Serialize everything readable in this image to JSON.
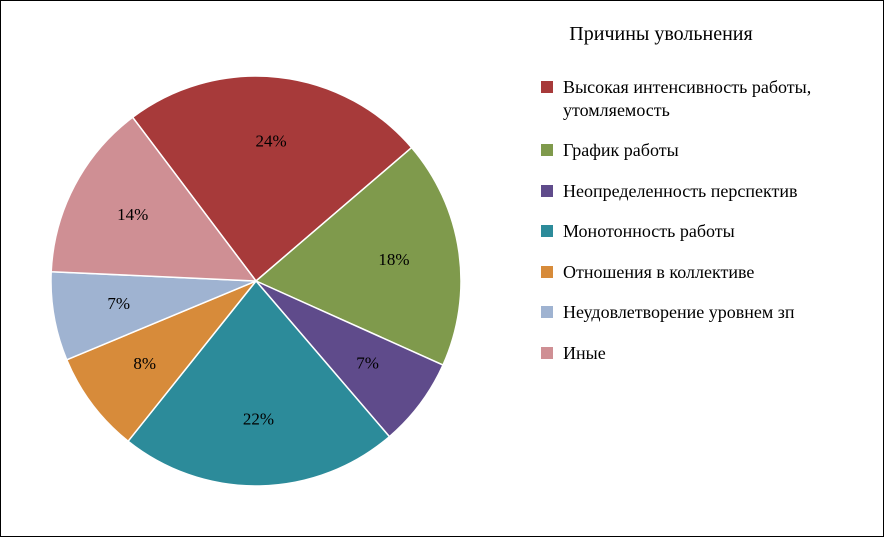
{
  "chart": {
    "type": "pie",
    "title": "Причины увольнения",
    "title_fontsize": 20,
    "background_color": "#ffffff",
    "border_color": "#000000",
    "slice_stroke_color": "#ffffff",
    "slice_stroke_width": 1.5,
    "label_fontsize": 17,
    "legend_fontsize": 18,
    "legend_marker": "square",
    "pie_start_angle_deg": -37,
    "pie_direction": "clockwise",
    "slices": [
      {
        "name": "Высокая интенсивность работы, утомляемость",
        "value": 24,
        "label": "24%",
        "color": "#a73a3a"
      },
      {
        "name": "График работы",
        "value": 18,
        "label": "18%",
        "color": "#7f9a4c"
      },
      {
        "name": "Неопределенность перспектив",
        "value": 7,
        "label": "7%",
        "color": "#5f4b8b"
      },
      {
        "name": "Монотонность работы",
        "value": 22,
        "label": "22%",
        "color": "#2c8b9a"
      },
      {
        "name": "Отношения в коллективе",
        "value": 8,
        "label": "8%",
        "color": "#d78b3a"
      },
      {
        "name": "Неудовлетворение уровнем зп",
        "value": 7,
        "label": "7%",
        "color": "#9fb3d1"
      },
      {
        "name": "Иные",
        "value": 14,
        "label": "14%",
        "color": "#cf8f94"
      }
    ]
  }
}
